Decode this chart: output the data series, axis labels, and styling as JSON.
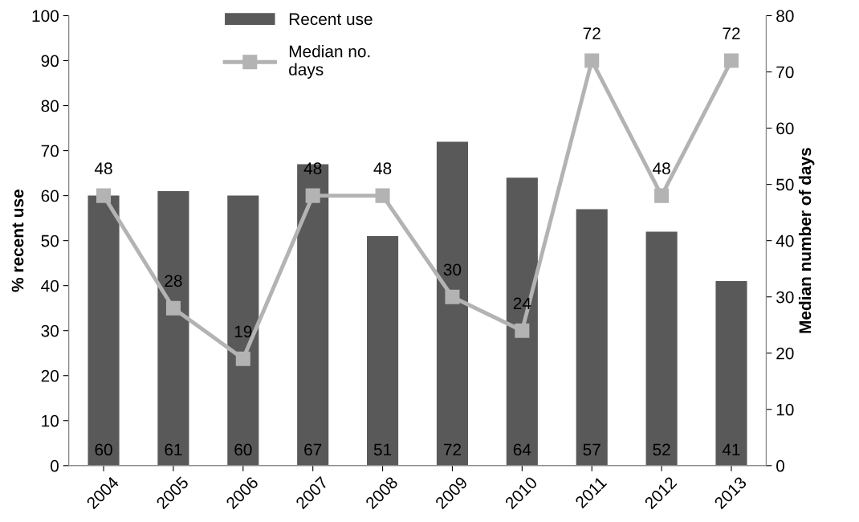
{
  "chart_data": {
    "type": "bar",
    "ylabel": "% recent use",
    "y2label": "Median number of days",
    "categories": [
      "2004",
      "2005",
      "2006",
      "2007",
      "2008",
      "2009",
      "2010",
      "2011",
      "2012",
      "2013"
    ],
    "series": [
      {
        "name": "Recent use",
        "color": "#595959",
        "values": [
          60,
          61,
          60,
          67,
          51,
          72,
          64,
          57,
          52,
          41
        ]
      },
      {
        "name": "Median no. days",
        "type": "line",
        "axis": "y2",
        "color": "#b3b3b3",
        "marker": "square",
        "line_style": "solid",
        "values": [
          48,
          28,
          19,
          48,
          48,
          30,
          24,
          72,
          48,
          72
        ]
      }
    ],
    "ylim": [
      0,
      100
    ],
    "yticks": [
      0,
      10,
      20,
      30,
      40,
      50,
      60,
      70,
      80,
      90,
      100
    ],
    "y2lim": [
      0,
      80
    ],
    "y2ticks": [
      0,
      10,
      20,
      30,
      40,
      50,
      60,
      70,
      80
    ],
    "data_labels": true,
    "grid": false,
    "legend": "top"
  }
}
